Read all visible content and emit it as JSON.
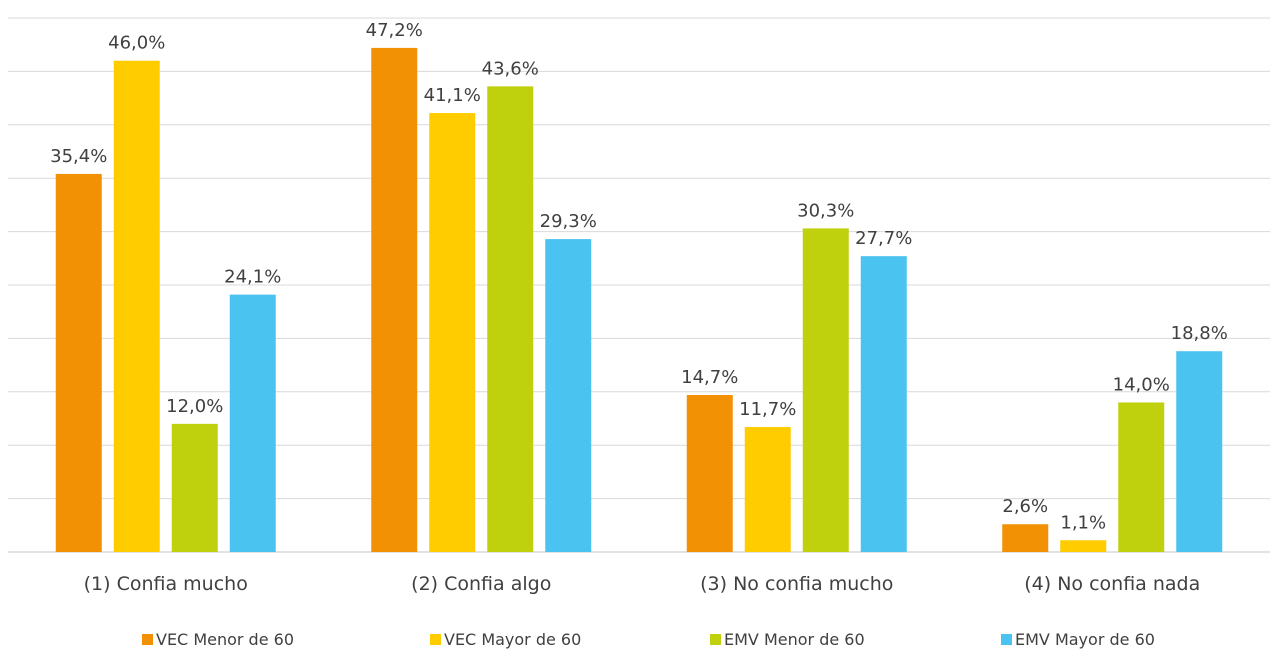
{
  "chart_data": {
    "type": "bar",
    "title": "",
    "xlabel": "",
    "ylabel": "",
    "ylim": [
      0,
      50
    ],
    "grid": true,
    "legend_position": "bottom",
    "categories": [
      "(1)  Confia mucho",
      "(2)  Confia algo",
      "(3)  No confia mucho",
      "(4)  No confia nada"
    ],
    "series": [
      {
        "name": "VEC Menor de 60",
        "color": "#F29104",
        "values": [
          35.4,
          47.2,
          14.7,
          2.6
        ],
        "labels": [
          "35,4%",
          "47,2%",
          "14,7%",
          "2,6%"
        ]
      },
      {
        "name": "VEC Mayor de 60",
        "color": "#FFCC00",
        "values": [
          46.0,
          41.1,
          11.7,
          1.1
        ],
        "labels": [
          "46,0%",
          "41,1%",
          "11,7%",
          "1,1%"
        ]
      },
      {
        "name": "EMV Menor de 60",
        "color": "#BFD00D",
        "values": [
          12.0,
          43.6,
          30.3,
          14.0
        ],
        "labels": [
          "12,0%",
          "43,6%",
          "30,3%",
          "14,0%"
        ]
      },
      {
        "name": "EMV Mayor de 60",
        "color": "#4BC3F0",
        "values": [
          24.1,
          29.3,
          27.7,
          18.8
        ],
        "labels": [
          "24,1%",
          "29,3%",
          "27,7%",
          "18,8%"
        ]
      }
    ]
  }
}
